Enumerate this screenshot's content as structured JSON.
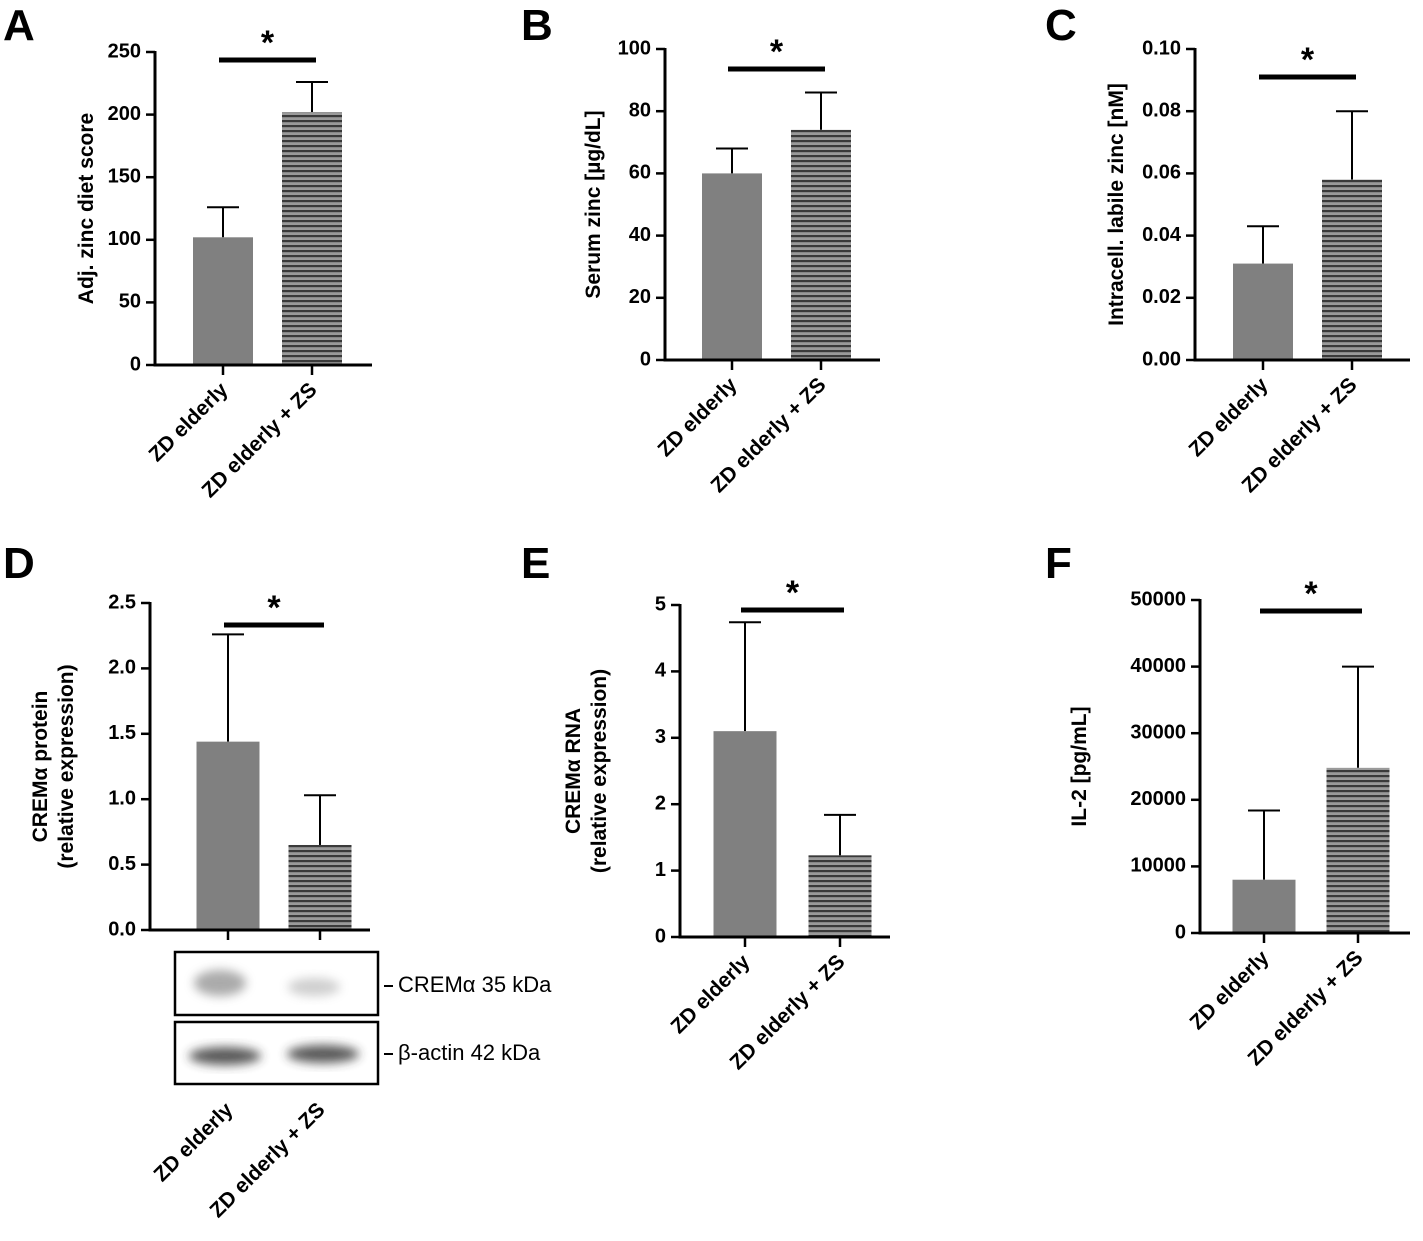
{
  "chart_data": [
    {
      "type": "bar",
      "panel": "A",
      "ylabel": [
        "Adj. zinc diet score"
      ],
      "categories": [
        "ZD elderly",
        "ZD elderly + ZS"
      ],
      "values": [
        102,
        202
      ],
      "errors": [
        24,
        24
      ],
      "colors": [
        "#808080",
        "hatch"
      ],
      "ylim": [
        0,
        250
      ],
      "yticks": [
        0,
        50,
        100,
        150,
        200,
        250
      ],
      "significance": "*"
    },
    {
      "type": "bar",
      "panel": "B",
      "ylabel": [
        "Serum zinc [µg/dL]"
      ],
      "categories": [
        "ZD elderly",
        "ZD elderly + ZS"
      ],
      "values": [
        60,
        74
      ],
      "errors": [
        8,
        12
      ],
      "colors": [
        "#808080",
        "hatch"
      ],
      "ylim": [
        0,
        100
      ],
      "yticks": [
        0,
        20,
        40,
        60,
        80,
        100
      ],
      "significance": "*"
    },
    {
      "type": "bar",
      "panel": "C",
      "ylabel": [
        "Intracell. labile zinc [nM]"
      ],
      "categories": [
        "ZD elderly",
        "ZD elderly + ZS"
      ],
      "values": [
        0.031,
        0.058
      ],
      "errors": [
        0.012,
        0.022
      ],
      "colors": [
        "#808080",
        "hatch"
      ],
      "ylim": [
        0,
        0.1
      ],
      "yticks": [
        {
          "value": 0,
          "label": "0.00"
        },
        {
          "value": 0.02,
          "label": "0.02"
        },
        {
          "value": 0.04,
          "label": "0.04"
        },
        {
          "value": 0.06,
          "label": "0.06"
        },
        {
          "value": 0.08,
          "label": "0.08"
        },
        {
          "value": 0.1,
          "label": "0.10"
        }
      ],
      "significance": "*"
    },
    {
      "type": "bar",
      "panel": "D",
      "ylabel": [
        "CREMα protein",
        "(relative expression)"
      ],
      "categories": [
        "ZD elderly",
        "ZD elderly + ZS"
      ],
      "values": [
        1.44,
        0.65
      ],
      "errors": [
        0.82,
        0.38
      ],
      "colors": [
        "#808080",
        "hatch"
      ],
      "ylim": [
        0,
        2.5
      ],
      "yticks": [
        {
          "value": 0,
          "label": "0.0"
        },
        {
          "value": 0.5,
          "label": "0.5"
        },
        {
          "value": 1,
          "label": "1.0"
        },
        {
          "value": 1.5,
          "label": "1.5"
        },
        {
          "value": 2,
          "label": "2.0"
        },
        {
          "value": 2.5,
          "label": "2.5"
        }
      ],
      "significance": "*",
      "blot_labels": [
        "CREMα 35 kDa",
        "β-actin 42 kDa"
      ]
    },
    {
      "type": "bar",
      "panel": "E",
      "ylabel": [
        "CREMα RNA",
        "(relative expression)"
      ],
      "categories": [
        "ZD elderly",
        "ZD elderly + ZS"
      ],
      "values": [
        3.1,
        1.23
      ],
      "errors": [
        1.64,
        0.61
      ],
      "colors": [
        "#808080",
        "hatch"
      ],
      "ylim": [
        0,
        5
      ],
      "yticks": [
        0,
        1,
        2,
        3,
        4,
        5
      ],
      "significance": "*"
    },
    {
      "type": "bar",
      "panel": "F",
      "ylabel": [
        "IL-2 [pg/mL]"
      ],
      "categories": [
        "ZD elderly",
        "ZD elderly + ZS"
      ],
      "values": [
        8000,
        24800
      ],
      "errors": [
        10400,
        15200
      ],
      "colors": [
        "#808080",
        "hatch"
      ],
      "ylim": [
        0,
        50000
      ],
      "yticks": [
        0,
        10000,
        20000,
        30000,
        40000,
        50000
      ],
      "significance": "*"
    }
  ]
}
